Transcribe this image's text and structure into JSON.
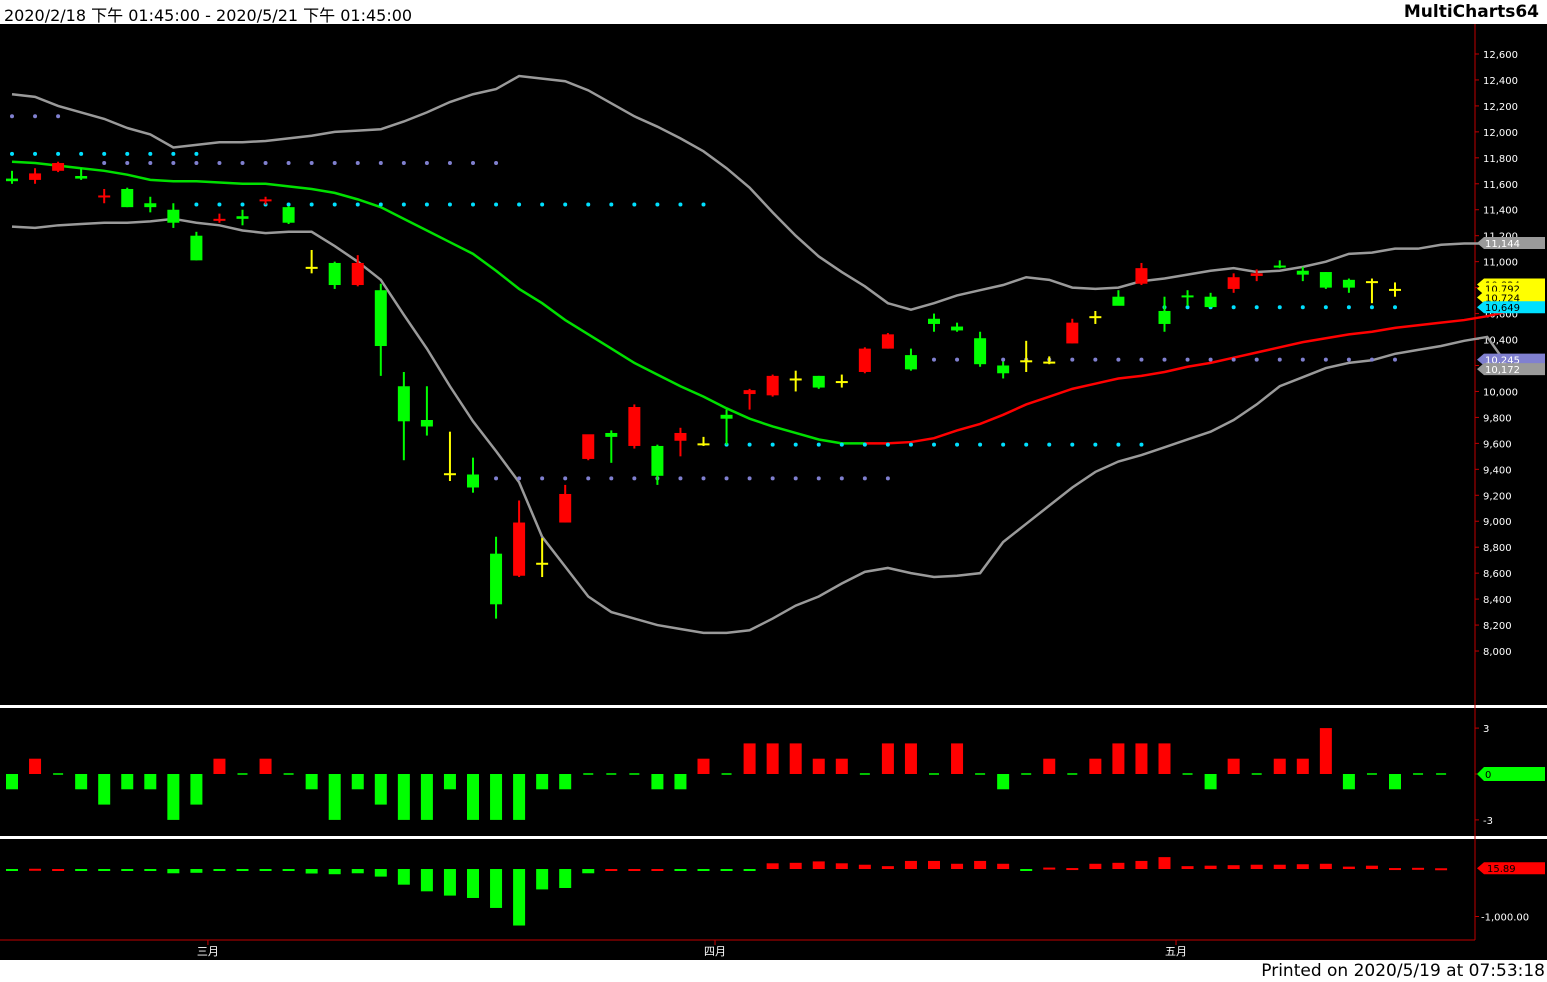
{
  "header": {
    "range": "2020/2/18 下午 01:45:00 - 2020/5/21 下午 01:45:00",
    "app": "MultiCharts64"
  },
  "footer": {
    "printed": "Printed on 2020/5/19 at 07:53:18"
  },
  "colors": {
    "background": "#000000",
    "up": "#ff0000",
    "down": "#00ff00",
    "neutral": "#ffff00",
    "band": "#9a9a9a",
    "midline_down": "#00e000",
    "midline_up": "#ff0000",
    "cyan_dots": "#00e0ff",
    "violet_dots": "#8080d0",
    "separator": "#ffffff"
  },
  "chart_data": [
    {
      "type": "candlestick",
      "ylim": [
        7900,
        12800
      ],
      "y_ticks": [
        "12,600",
        "12,400",
        "12,200",
        "12,000",
        "11,800",
        "11,600",
        "11,400",
        "11,200",
        "11,000",
        "10,800",
        "10,600",
        "10,400",
        "10,200",
        "10,000",
        "9,800",
        "9,600",
        "9,400",
        "9,200",
        "9,000",
        "8,800",
        "8,600",
        "8,400",
        "8,200",
        "8,000"
      ],
      "x_labels": [
        {
          "label": "三月",
          "index": 8.5
        },
        {
          "label": "四月",
          "index": 30.5
        },
        {
          "label": "五月",
          "index": 50.5
        }
      ],
      "bars": [
        {
          "o": 11640,
          "h": 11700,
          "l": 11600,
          "c": 11620
        },
        {
          "o": 11630,
          "h": 11720,
          "l": 11600,
          "c": 11680
        },
        {
          "o": 11700,
          "h": 11770,
          "l": 11690,
          "c": 11760
        },
        {
          "o": 11660,
          "h": 11720,
          "l": 11630,
          "c": 11640
        },
        {
          "o": 11500,
          "h": 11560,
          "l": 11450,
          "c": 11510
        },
        {
          "o": 11560,
          "h": 11570,
          "l": 11420,
          "c": 11420
        },
        {
          "o": 11450,
          "h": 11500,
          "l": 11380,
          "c": 11420
        },
        {
          "o": 11400,
          "h": 11450,
          "l": 11260,
          "c": 11300
        },
        {
          "o": 11200,
          "h": 11230,
          "l": 11010,
          "c": 11010
        },
        {
          "o": 11320,
          "h": 11370,
          "l": 11300,
          "c": 11330
        },
        {
          "o": 11350,
          "h": 11400,
          "l": 11280,
          "c": 11330
        },
        {
          "o": 11470,
          "h": 11500,
          "l": 11440,
          "c": 11480
        },
        {
          "o": 11420,
          "h": 11430,
          "l": 11290,
          "c": 11300
        },
        {
          "o": 10960,
          "h": 11090,
          "l": 10910,
          "c": 10960
        },
        {
          "o": 10990,
          "h": 11000,
          "l": 10790,
          "c": 10820
        },
        {
          "o": 10820,
          "h": 11050,
          "l": 10810,
          "c": 10990
        },
        {
          "o": 10780,
          "h": 10830,
          "l": 10120,
          "c": 10350
        },
        {
          "o": 10040,
          "h": 10150,
          "l": 9470,
          "c": 9770
        },
        {
          "o": 9780,
          "h": 10040,
          "l": 9660,
          "c": 9730
        },
        {
          "o": 9370,
          "h": 9690,
          "l": 9310,
          "c": 9370
        },
        {
          "o": 9360,
          "h": 9490,
          "l": 9220,
          "c": 9260
        },
        {
          "o": 8750,
          "h": 8880,
          "l": 8250,
          "c": 8360
        },
        {
          "o": 8580,
          "h": 9160,
          "l": 8570,
          "c": 8990
        },
        {
          "o": 8680,
          "h": 8870,
          "l": 8570,
          "c": 8680
        },
        {
          "o": 8990,
          "h": 9280,
          "l": 8990,
          "c": 9210
        },
        {
          "o": 9480,
          "h": 9640,
          "l": 9470,
          "c": 9670
        },
        {
          "o": 9680,
          "h": 9700,
          "l": 9450,
          "c": 9650
        },
        {
          "o": 9580,
          "h": 9900,
          "l": 9560,
          "c": 9880
        },
        {
          "o": 9580,
          "h": 9590,
          "l": 9280,
          "c": 9350
        },
        {
          "o": 9620,
          "h": 9720,
          "l": 9500,
          "c": 9680
        },
        {
          "o": 9600,
          "h": 9650,
          "l": 9580,
          "c": 9600
        },
        {
          "o": 9820,
          "h": 9860,
          "l": 9590,
          "c": 9790
        },
        {
          "o": 9980,
          "h": 10020,
          "l": 9860,
          "c": 10010
        },
        {
          "o": 9970,
          "h": 10130,
          "l": 9960,
          "c": 10120
        },
        {
          "o": 10100,
          "h": 10160,
          "l": 10000,
          "c": 10100
        },
        {
          "o": 10120,
          "h": 10120,
          "l": 10020,
          "c": 10030
        },
        {
          "o": 10080,
          "h": 10130,
          "l": 10030,
          "c": 10080
        },
        {
          "o": 10150,
          "h": 10340,
          "l": 10140,
          "c": 10330
        },
        {
          "o": 10330,
          "h": 10450,
          "l": 10330,
          "c": 10440
        },
        {
          "o": 10280,
          "h": 10330,
          "l": 10160,
          "c": 10170
        },
        {
          "o": 10560,
          "h": 10600,
          "l": 10460,
          "c": 10520
        },
        {
          "o": 10500,
          "h": 10530,
          "l": 10460,
          "c": 10470
        },
        {
          "o": 10410,
          "h": 10460,
          "l": 10190,
          "c": 10210
        },
        {
          "o": 10200,
          "h": 10230,
          "l": 10100,
          "c": 10140
        },
        {
          "o": 10240,
          "h": 10390,
          "l": 10150,
          "c": 10240
        },
        {
          "o": 10230,
          "h": 10270,
          "l": 10210,
          "c": 10230
        },
        {
          "o": 10370,
          "h": 10560,
          "l": 10370,
          "c": 10530
        },
        {
          "o": 10580,
          "h": 10620,
          "l": 10520,
          "c": 10580
        },
        {
          "o": 10730,
          "h": 10780,
          "l": 10680,
          "c": 10660
        },
        {
          "o": 10830,
          "h": 10990,
          "l": 10820,
          "c": 10950
        },
        {
          "o": 10620,
          "h": 10730,
          "l": 10460,
          "c": 10520
        },
        {
          "o": 10740,
          "h": 10780,
          "l": 10660,
          "c": 10730
        },
        {
          "o": 10730,
          "h": 10760,
          "l": 10650,
          "c": 10650
        },
        {
          "o": 10790,
          "h": 10910,
          "l": 10760,
          "c": 10880
        },
        {
          "o": 10890,
          "h": 10940,
          "l": 10850,
          "c": 10910
        },
        {
          "o": 10970,
          "h": 11010,
          "l": 10950,
          "c": 10960
        },
        {
          "o": 10930,
          "h": 10960,
          "l": 10850,
          "c": 10900
        },
        {
          "o": 10920,
          "h": 10920,
          "l": 10790,
          "c": 10800
        },
        {
          "o": 10860,
          "h": 10870,
          "l": 10760,
          "c": 10800
        },
        {
          "o": 10850,
          "h": 10870,
          "l": 10680,
          "c": 10840
        },
        {
          "o": 10790,
          "h": 10840,
          "l": 10730,
          "c": 10790
        }
      ],
      "upper_band": [
        12290,
        12270,
        12200,
        12150,
        12100,
        12030,
        11980,
        11880,
        11900,
        11920,
        11920,
        11930,
        11950,
        11970,
        12000,
        12010,
        12020,
        12080,
        12150,
        12230,
        12290,
        12330,
        12430,
        12410,
        12390,
        12320,
        12220,
        12120,
        12040,
        11950,
        11850,
        11720,
        11570,
        11380,
        11200,
        11040,
        10920,
        10810,
        10680,
        10630,
        10680,
        10740,
        10780,
        10820,
        10880,
        10860,
        10800,
        10790,
        10800,
        10850,
        10870,
        10900,
        10930,
        10950,
        10920,
        10930,
        10960,
        11000,
        11060,
        11070,
        11100,
        11100,
        11130,
        11140,
        11140,
        11144
      ],
      "lower_band": [
        11270,
        11260,
        11280,
        11290,
        11300,
        11300,
        11310,
        11330,
        11300,
        11280,
        11240,
        11220,
        11230,
        11230,
        11120,
        11000,
        10860,
        10590,
        10330,
        10040,
        9770,
        9540,
        9300,
        8880,
        8650,
        8420,
        8300,
        8250,
        8200,
        8170,
        8140,
        8140,
        8160,
        8250,
        8350,
        8420,
        8520,
        8610,
        8640,
        8600,
        8570,
        8580,
        8600,
        8840,
        8980,
        9120,
        9260,
        9380,
        9460,
        9510,
        9570,
        9630,
        9690,
        9780,
        9900,
        10040,
        10110,
        10180,
        10220,
        10240,
        10290,
        10320,
        10350,
        10390,
        10420,
        10172
      ],
      "mid_line": [
        11770,
        11760,
        11740,
        11720,
        11700,
        11670,
        11630,
        11620,
        11620,
        11610,
        11600,
        11600,
        11580,
        11560,
        11530,
        11480,
        11420,
        11330,
        11240,
        11150,
        11060,
        10930,
        10790,
        10680,
        10550,
        10440,
        10330,
        10220,
        10130,
        10040,
        9960,
        9870,
        9790,
        9730,
        9680,
        9630,
        9600,
        9600,
        9600,
        9610,
        9640,
        9700,
        9750,
        9820,
        9900,
        9960,
        10020,
        10060,
        10100,
        10120,
        10150,
        10190,
        10220,
        10260,
        10300,
        10340,
        10380,
        10410,
        10440,
        10460,
        10490,
        10510,
        10530,
        10550,
        10580,
        10621
      ],
      "dot_levels": [
        {
          "y": 12120,
          "from": 0,
          "to": 2,
          "color": "violet"
        },
        {
          "y": 11830,
          "from": 0,
          "to": 8,
          "color": "cyan"
        },
        {
          "y": 11760,
          "from": 4,
          "to": 21,
          "color": "violet"
        },
        {
          "y": 11440,
          "from": 8,
          "to": 30,
          "color": "cyan"
        },
        {
          "y": 10649,
          "from": 50,
          "to": 60,
          "color": "cyan"
        },
        {
          "y": 10245,
          "from": 40,
          "to": 60,
          "color": "violet"
        },
        {
          "y": 9590,
          "from": 31,
          "to": 49,
          "color": "cyan"
        },
        {
          "y": 9330,
          "from": 21,
          "to": 38,
          "color": "violet"
        }
      ],
      "price_tags": [
        {
          "label": "11,144",
          "value": 11144,
          "color": "#9a9a9a",
          "text_color": "#ffffff"
        },
        {
          "label": "10,824",
          "value": 10824,
          "color": "#ffff00",
          "text_color": "#000000"
        },
        {
          "label": "10,792",
          "value": 10792,
          "color": "#ffff00",
          "text_color": "#000000"
        },
        {
          "label": "10,724",
          "value": 10724,
          "color": "#ffff00",
          "text_color": "#000000"
        },
        {
          "label": "10,649",
          "value": 10649,
          "color": "#00e0ff",
          "text_color": "#000000"
        },
        {
          "label": "10,245",
          "value": 10245,
          "color": "#8080d0",
          "text_color": "#ffffff"
        },
        {
          "label": "10,172",
          "value": 10172,
          "color": "#9a9a9a",
          "text_color": "#ffffff"
        }
      ]
    },
    {
      "type": "bar",
      "ylim": [
        -4,
        4
      ],
      "y_ticks": [
        "3",
        "0",
        "-3"
      ],
      "values": [
        -1,
        1,
        0,
        -1,
        -2,
        -1,
        -1,
        -3,
        -2,
        1,
        0,
        1,
        0,
        -1,
        -3,
        -1,
        -2,
        -3,
        -3,
        -1,
        -3,
        -3,
        -3,
        -1,
        -1,
        0,
        0,
        0,
        -1,
        -1,
        1,
        0,
        2,
        2,
        2,
        1,
        1,
        0,
        2,
        2,
        0,
        2,
        0,
        -1,
        0,
        1,
        0,
        1,
        2,
        2,
        2,
        0,
        -1,
        1,
        0,
        1,
        1,
        3,
        -1,
        0,
        -1,
        0,
        0
      ],
      "tag": {
        "label": "0",
        "value": 0,
        "color": "#00ff00",
        "text_color": "#000000"
      }
    },
    {
      "type": "bar",
      "ylim": [
        -1450,
        250
      ],
      "y_ticks": [
        "-1,000.00"
      ],
      "values": [
        -15,
        5,
        0,
        -15,
        -30,
        -15,
        -30,
        -90,
        -80,
        -20,
        -30,
        -10,
        -35,
        -95,
        -110,
        -90,
        -160,
        -330,
        -470,
        -560,
        -610,
        -820,
        -1190,
        -430,
        -400,
        -90,
        0,
        0,
        0,
        -30,
        -30,
        -30,
        -30,
        120,
        130,
        160,
        120,
        90,
        60,
        170,
        170,
        110,
        170,
        110,
        -20,
        30,
        20,
        110,
        130,
        170,
        250,
        60,
        70,
        80,
        90,
        90,
        100,
        110,
        50,
        70,
        20,
        25,
        15.89
      ],
      "tag": {
        "label": "15.89",
        "value": 15.89,
        "color": "#ff0000",
        "text_color": "#000000"
      }
    }
  ]
}
